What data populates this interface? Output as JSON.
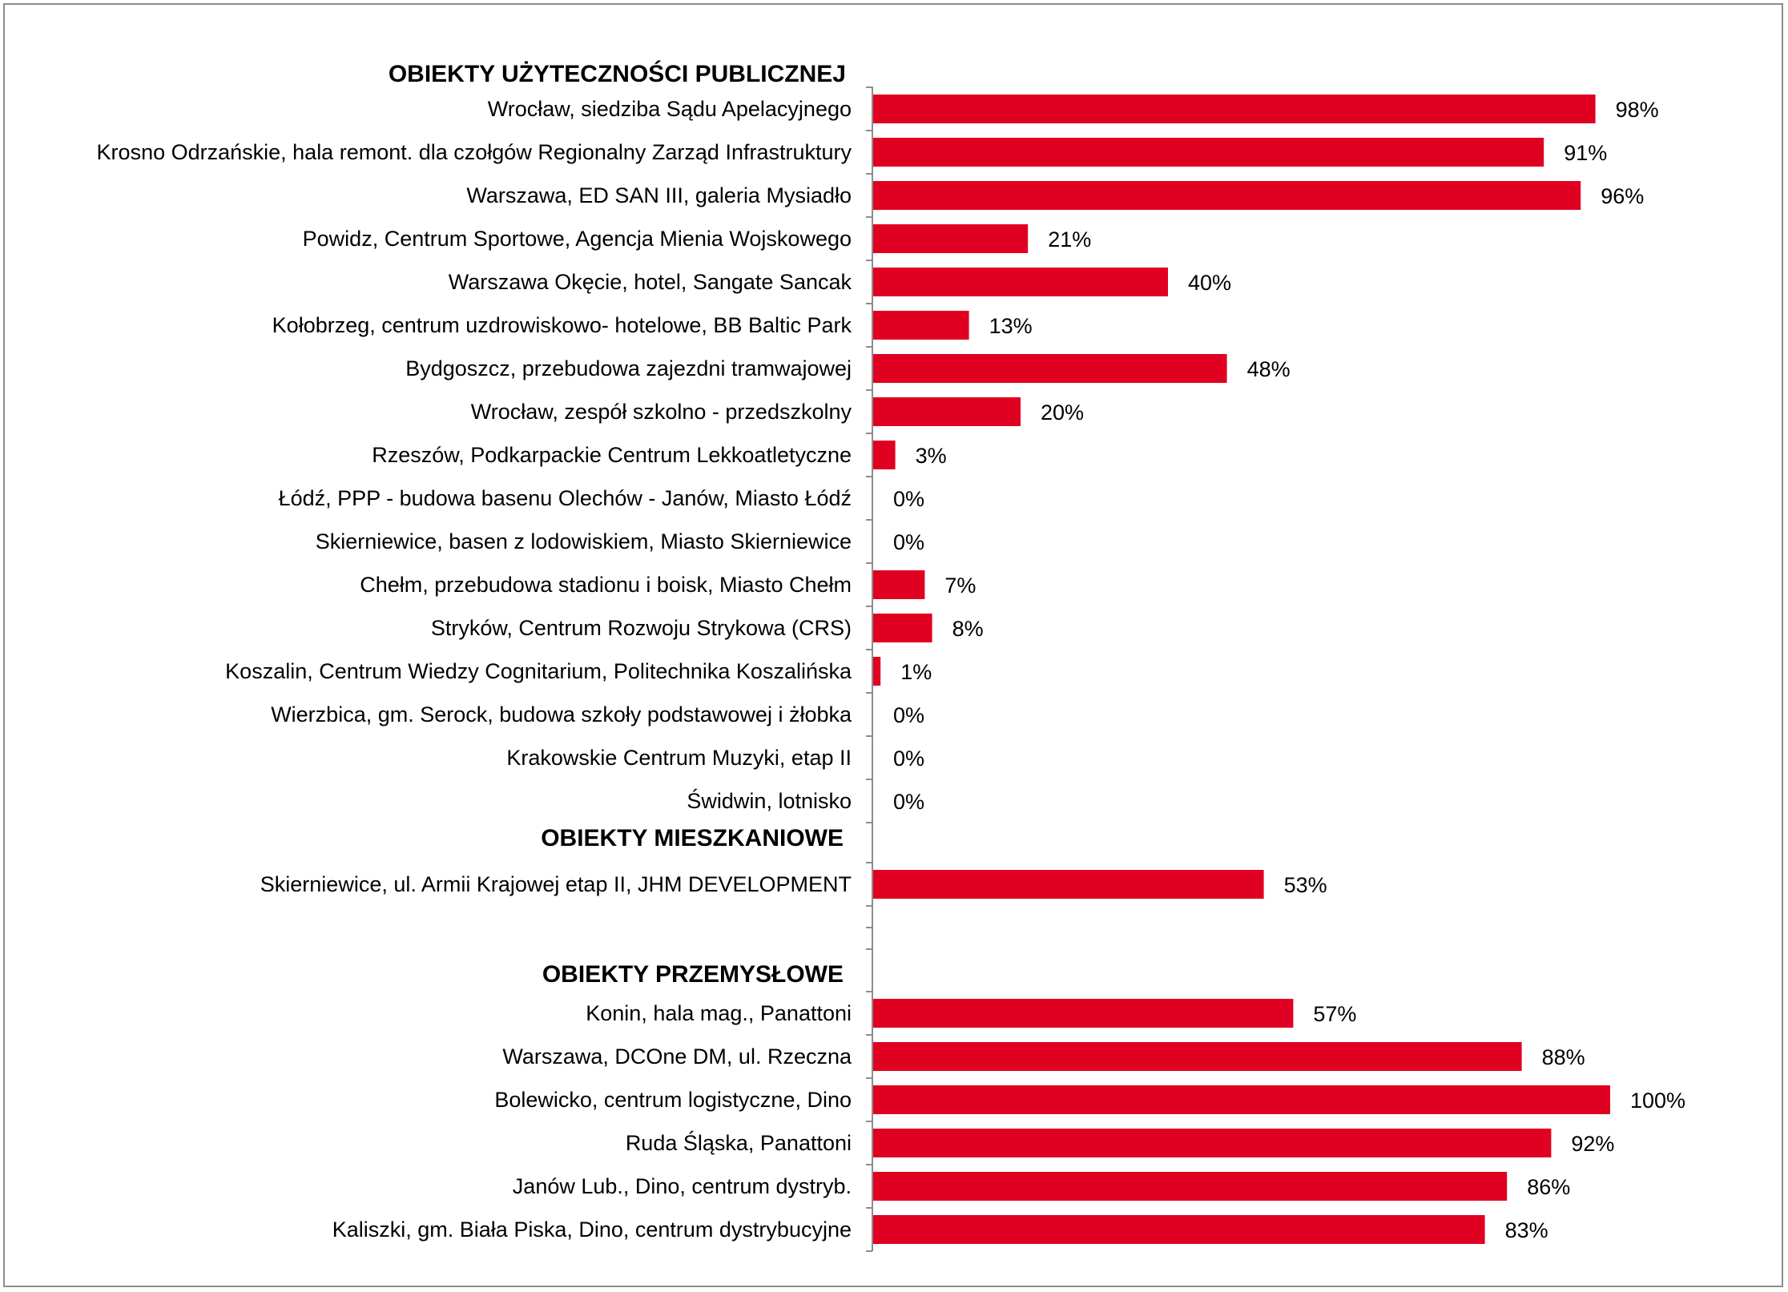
{
  "colors": {
    "bar": "#e00021",
    "axis": "#8c8c8c",
    "border": "#8c8c8c"
  },
  "chart_data": {
    "type": "bar",
    "orientation": "horizontal",
    "xlim": [
      0,
      100
    ],
    "grid": false,
    "legend": "none",
    "value_suffix": "%",
    "groups": [
      {
        "title": "OBIEKTY UŻYTECZNOŚCI PUBLICZNEJ",
        "categories": [
          "Wrocław, siedziba Sądu Apelacyjnego",
          "Krosno Odrzańskie, hala remont. dla czołgów Regionalny Zarząd Infrastruktury",
          "Warszawa, ED SAN III, galeria Mysiadło",
          "Powidz, Centrum Sportowe, Agencja Mienia Wojskowego",
          "Warszawa Okęcie, hotel,  Sangate Sancak",
          "Kołobrzeg, centrum uzdrowiskowo- hotelowe, BB Baltic Park",
          "Bydgoszcz, przebudowa zajezdni tramwajowej",
          "Wrocław, zespół szkolno - przedszkolny",
          "Rzeszów, Podkarpackie Centrum Lekkoatletyczne",
          "Łódź, PPP - budowa basenu Olechów - Janów, Miasto Łódź",
          "Skierniewice, basen z lodowiskiem, Miasto Skierniewice",
          "Chełm, przebudowa stadionu i boisk, Miasto Chełm",
          "Stryków, Centrum Rozwoju Strykowa (CRS)",
          "Koszalin, Centrum Wiedzy Cognitarium, Politechnika Koszalińska",
          "Wierzbica, gm. Serock, budowa szkoły podstawowej i żłobka",
          "Krakowskie Centrum Muzyki, etap II",
          "Świdwin, lotnisko"
        ],
        "values": [
          98,
          91,
          96,
          21,
          40,
          13,
          48,
          20,
          3,
          0,
          0,
          7,
          8,
          1,
          0,
          0,
          0
        ]
      },
      {
        "title": "OBIEKTY MIESZKANIOWE",
        "categories": [
          "Skierniewice, ul. Armii Krajowej etap II, JHM DEVELOPMENT"
        ],
        "values": [
          53
        ]
      },
      {
        "title": "OBIEKTY PRZEMYSŁOWE",
        "categories": [
          "Konin, hala mag., Panattoni ",
          "Warszawa, DCOne DM, ul. Rzeczna",
          "Bolewicko, centrum logistyczne, Dino",
          "Ruda Śląska, Panattoni",
          "Janów Lub., Dino, centrum dystryb.",
          "Kaliszki, gm. Biała Piska, Dino, centrum dystrybucyjne"
        ],
        "values": [
          57,
          88,
          100,
          92,
          86,
          83
        ]
      }
    ]
  }
}
